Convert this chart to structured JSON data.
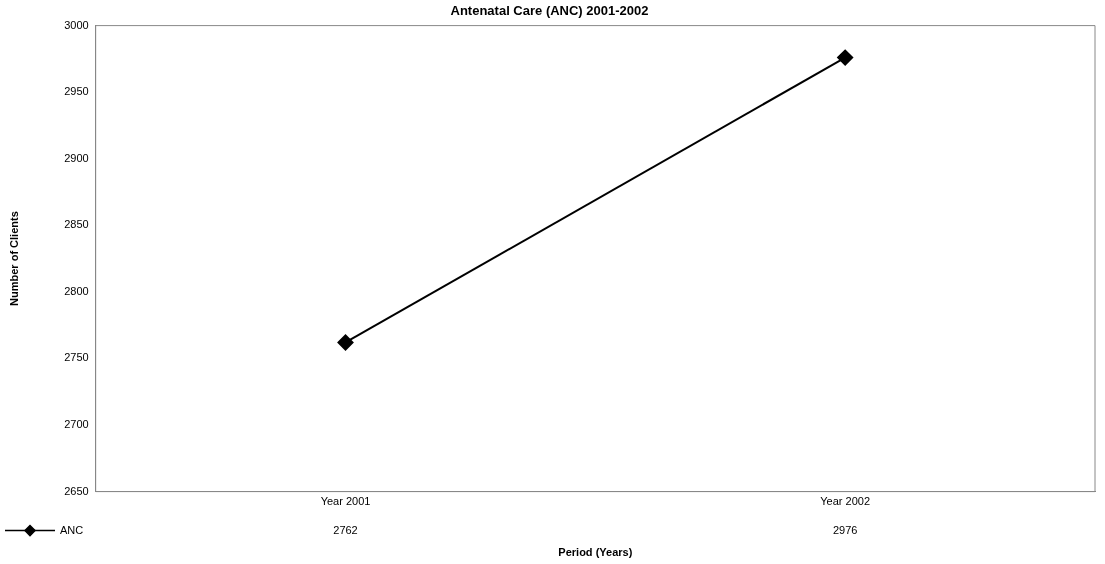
{
  "chart_data": {
    "type": "line",
    "title": "Antenatal Care (ANC) 2001-2002",
    "xlabel": "Period (Years)",
    "ylabel": "Number of Clients",
    "categories": [
      "Year 2001",
      "Year 2002"
    ],
    "series": [
      {
        "name": "ANC",
        "color": "#000000",
        "values": [
          2762,
          2976
        ]
      }
    ],
    "ylim": [
      2650,
      3000
    ],
    "yticks": [
      2650,
      2700,
      2750,
      2800,
      2850,
      2900,
      2950,
      3000
    ],
    "marker": "diamond",
    "line_style": "solid",
    "data_labels": true,
    "legend": "bottom left",
    "grid": false
  }
}
